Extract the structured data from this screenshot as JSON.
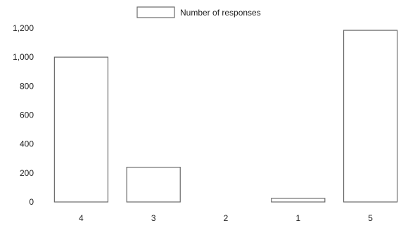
{
  "chart_data": {
    "type": "bar",
    "categories": [
      "4",
      "3",
      "2",
      "1",
      "5"
    ],
    "series": [
      {
        "name": "Number of responses",
        "values": [
          1000,
          240,
          0,
          25,
          1185
        ]
      }
    ],
    "ylim": [
      0,
      1200
    ],
    "yticks": [
      "0",
      "200",
      "400",
      "600",
      "800",
      "1,000",
      "1,200"
    ],
    "grid": false,
    "legend_position": "top-center",
    "colors": {
      "bar_fill": "#ffffff",
      "bar_stroke": "#6a6a6a",
      "text": "#222222"
    }
  }
}
